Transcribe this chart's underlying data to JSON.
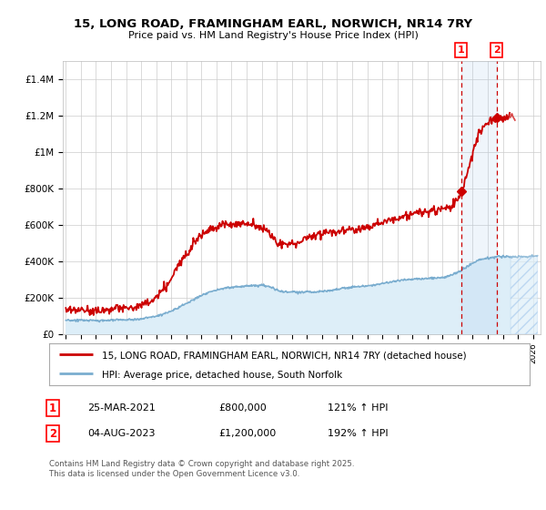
{
  "title": "15, LONG ROAD, FRAMINGHAM EARL, NORWICH, NR14 7RY",
  "subtitle": "Price paid vs. HM Land Registry's House Price Index (HPI)",
  "ylabel_ticks": [
    "£0",
    "£200K",
    "£400K",
    "£600K",
    "£800K",
    "£1M",
    "£1.2M",
    "£1.4M"
  ],
  "ytick_vals": [
    0,
    200000,
    400000,
    600000,
    800000,
    1000000,
    1200000,
    1400000
  ],
  "ylim": [
    0,
    1500000
  ],
  "xlim_start": 1994.8,
  "xlim_end": 2026.5,
  "property_color": "#cc0000",
  "hpi_color": "#7aadcf",
  "hpi_fill_color": "#ddeef8",
  "future_cutoff": 2024.5,
  "marker1_x": 2021.23,
  "marker2_x": 2023.59,
  "marker1_price": 800000,
  "marker2_price": 1200000,
  "marker1_label": "25-MAR-2021",
  "marker2_label": "04-AUG-2023",
  "marker1_hpi": "121% ↑ HPI",
  "marker2_hpi": "192% ↑ HPI",
  "legend_property": "15, LONG ROAD, FRAMINGHAM EARL, NORWICH, NR14 7RY (detached house)",
  "legend_hpi": "HPI: Average price, detached house, South Norfolk",
  "footer": "Contains HM Land Registry data © Crown copyright and database right 2025.\nThis data is licensed under the Open Government Licence v3.0.",
  "background_color": "#ffffff",
  "grid_color": "#cccccc"
}
